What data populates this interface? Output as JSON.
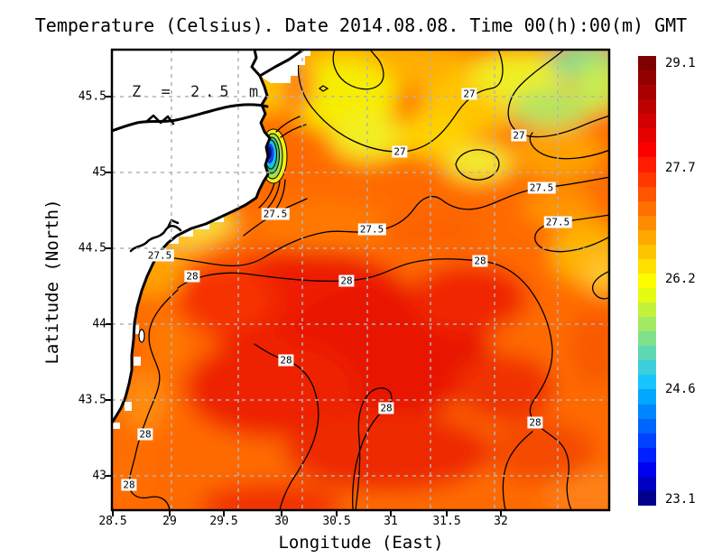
{
  "title": "Temperature (Celsius). Date 2014.08.08. Time 00(h):00(m) GMT",
  "annotation": {
    "depth_label": "Z = 2.5 m"
  },
  "axes": {
    "x": {
      "label": "Longitude (East)",
      "ticks": [
        "28.5",
        "29",
        "29.5",
        "30",
        "30.5",
        "31",
        "31.5",
        "32"
      ]
    },
    "y": {
      "label": "Latitude (North)",
      "ticks": [
        "45.5",
        "45",
        "44.5",
        "44",
        "43.5",
        "43"
      ]
    }
  },
  "colorbar": {
    "tick_labels": [
      "29.1",
      "27.7",
      "26.2",
      "24.6",
      "23.1"
    ],
    "min": 23.1,
    "max": 29.1,
    "colors": [
      "#7f0000",
      "#930000",
      "#a80000",
      "#bd0000",
      "#d20000",
      "#e70000",
      "#fc0000",
      "#ff1c00",
      "#ff3800",
      "#ff5400",
      "#ff7000",
      "#ff8c00",
      "#ffa800",
      "#ffc400",
      "#ffe000",
      "#fffc00",
      "#e6fb14",
      "#c4f23c",
      "#a2e964",
      "#80e08c",
      "#5ed7b4",
      "#3ccedc",
      "#1ac5ff",
      "#00a8ff",
      "#0086ff",
      "#0064ff",
      "#0042ff",
      "#0020ff",
      "#0000f0",
      "#0000c2",
      "#00008b"
    ]
  },
  "map_colors": {
    "land": "#ffffff",
    "coastline": "#000000",
    "grid": "#b4b4b4",
    "contour": "#000000"
  },
  "contour_labels": [
    {
      "value": "27"
    },
    {
      "value": "27"
    },
    {
      "value": "27"
    },
    {
      "value": "27.5"
    },
    {
      "value": "27.5"
    },
    {
      "value": "27.5"
    },
    {
      "value": "27.5"
    },
    {
      "value": "27.5"
    },
    {
      "value": "28"
    },
    {
      "value": "28"
    },
    {
      "value": "28"
    },
    {
      "value": "28"
    },
    {
      "value": "28"
    },
    {
      "value": "28"
    },
    {
      "value": "28"
    },
    {
      "value": "28"
    }
  ],
  "chart_data": {
    "type": "heatmap",
    "title": "Temperature (Celsius). Date 2014.08.08. Time 00(h):00(m) GMT",
    "variable": "Temperature",
    "units": "Celsius",
    "depth": "Z = 2.5 m",
    "datetime": "2014.08.08 00:00 GMT",
    "xlabel": "Longitude (East)",
    "ylabel": "Latitude (North)",
    "xlim": [
      28.5,
      33.0
    ],
    "ylim": [
      42.8,
      45.8
    ],
    "x_ticks": [
      28.5,
      29,
      29.5,
      30,
      30.5,
      31,
      31.5,
      32
    ],
    "y_ticks": [
      45.5,
      45,
      44.5,
      44,
      43.5,
      43
    ],
    "grid": true,
    "colorbar_ticks": [
      29.1,
      27.7,
      26.2,
      24.6,
      23.1
    ],
    "colorbar_range": [
      23.1,
      29.1
    ],
    "contour_levels_shown": [
      27,
      27.5,
      28
    ],
    "labeled_contours": [
      {
        "level": 27.0,
        "lon": 31.72,
        "lat": 45.52
      },
      {
        "level": 27.0,
        "lon": 32.16,
        "lat": 45.24
      },
      {
        "level": 27.0,
        "lon": 31.09,
        "lat": 45.14
      },
      {
        "level": 27.5,
        "lon": 32.37,
        "lat": 44.9
      },
      {
        "level": 27.5,
        "lon": 32.51,
        "lat": 44.67
      },
      {
        "level": 27.5,
        "lon": 30.84,
        "lat": 44.63
      },
      {
        "level": 27.5,
        "lon": 29.97,
        "lat": 44.73
      },
      {
        "level": 27.5,
        "lon": 28.92,
        "lat": 44.45
      },
      {
        "level": 28.0,
        "lon": 29.22,
        "lat": 44.32
      },
      {
        "level": 28.0,
        "lon": 30.61,
        "lat": 44.29
      },
      {
        "level": 28.0,
        "lon": 31.81,
        "lat": 44.42
      },
      {
        "level": 28.0,
        "lon": 30.06,
        "lat": 43.76
      },
      {
        "level": 28.0,
        "lon": 30.97,
        "lat": 43.45
      },
      {
        "level": 28.0,
        "lon": 32.31,
        "lat": 43.35
      },
      {
        "level": 28.0,
        "lon": 28.79,
        "lat": 43.27
      },
      {
        "level": 28.0,
        "lon": 28.65,
        "lat": 42.94
      }
    ],
    "features": [
      "White land mask (western Black Sea coast, Danube delta) on left side",
      "Cold coastal upwelling spot (~23-25 C, blue/cyan) near lon 30.0 lat 45.1",
      "Warmest water ~28+ C in central and southern basin",
      "Cooler ~26.5-27 C yellow/green water in the north-east"
    ]
  }
}
